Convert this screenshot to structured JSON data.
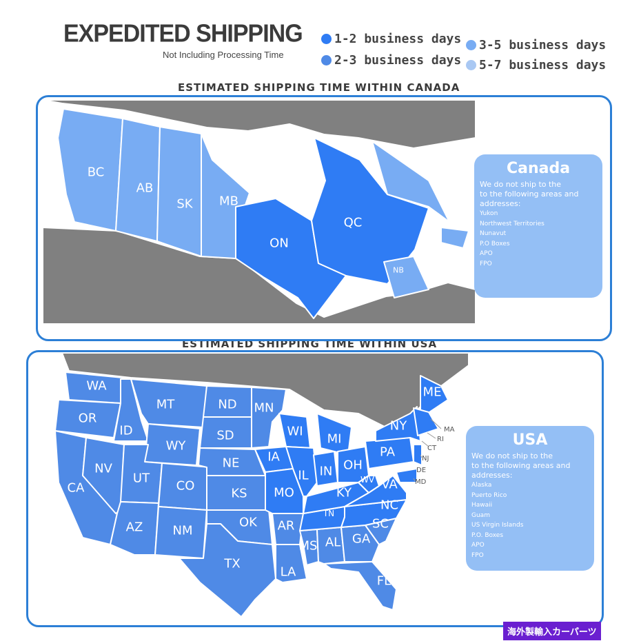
{
  "header": {
    "title": "EXPEDITED SHIPPING",
    "subtitle": "Not Including Processing Time"
  },
  "legend": [
    {
      "label": "1-2 business days",
      "color": "#2f7cf4"
    },
    {
      "label": "2-3 business days",
      "color": "#4f8ae6"
    },
    {
      "label": "3-5 business days",
      "color": "#78acf3"
    },
    {
      "label": "5-7 business days",
      "color": "#a9c8f3"
    }
  ],
  "canada": {
    "heading": "ESTIMATED SHIPPING TIME WITHIN CANADA",
    "provinces": [
      {
        "code": "BC",
        "tier": "3-5 business days"
      },
      {
        "code": "AB",
        "tier": "3-5 business days"
      },
      {
        "code": "SK",
        "tier": "3-5 business days"
      },
      {
        "code": "MB",
        "tier": "3-5 business days"
      },
      {
        "code": "ON",
        "tier": "1-2 business days"
      },
      {
        "code": "QC",
        "tier": "1-2 business days"
      },
      {
        "code": "NB",
        "tier": "3-5 business days"
      }
    ],
    "info": {
      "title": "Canada",
      "intro": [
        "We do not ship to the",
        "to the following areas and",
        "addresses:"
      ],
      "areas": [
        "Yukon",
        "Northwest Territories",
        "Nunavut",
        "P.O Boxes",
        "APO",
        "FPO"
      ]
    }
  },
  "usa": {
    "heading": "ESTIMATED SHIPPING TIME WITHIN USA",
    "states": [
      "WA",
      "OR",
      "ID",
      "MT",
      "WY",
      "ND",
      "SD",
      "NE",
      "MN",
      "IA",
      "WI",
      "MI",
      "IL",
      "IN",
      "OH",
      "NY",
      "PA",
      "NV",
      "UT",
      "CO",
      "KS",
      "MO",
      "KY",
      "WV",
      "VA",
      "CA",
      "AZ",
      "NM",
      "OK",
      "AR",
      "TN",
      "NC",
      "SC",
      "MS",
      "AL",
      "GA",
      "TX",
      "LA",
      "FL",
      "ME"
    ],
    "small_states": [
      "MA",
      "RI",
      "CT",
      "NJ",
      "DE",
      "MD"
    ],
    "info": {
      "title": "USA",
      "intro": [
        "We do not ship to the",
        "to the following areas and",
        "addresses:"
      ],
      "areas": [
        "Alaska",
        "Puerto Rico",
        "Hawaii",
        "Guam",
        "US Virgin Islands",
        "P.O. Boxes",
        "APO",
        "FPO"
      ]
    }
  },
  "colors": {
    "land": "#808080",
    "border": "#2c7fd6",
    "fast": "#2f7cf4",
    "medium": "#4f8ae6",
    "slow": "#78acf3"
  },
  "watermark": "海外製輸入カーパーツ"
}
